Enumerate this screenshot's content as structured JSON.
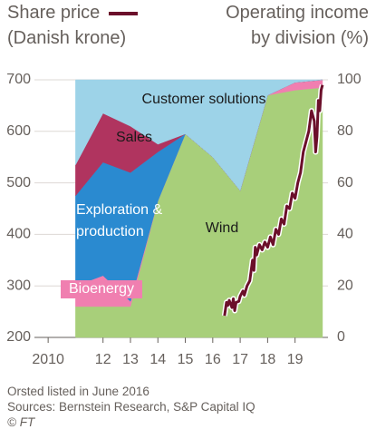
{
  "chart_data": {
    "type": "area",
    "stacked": true,
    "ylabel": "(Danish krone)",
    "y2label": "Operating income by division (%)",
    "note": "Orsted listed in June 2016",
    "source": "Sources: Bernstein Research, S&P Capital IQ",
    "credit": "© FT",
    "xlim": [
      2009.5,
      2020.2
    ],
    "xticks": [
      2010,
      {
        "value": 2012,
        "label": "12"
      },
      {
        "value": 2013,
        "label": "13"
      },
      {
        "value": 2014,
        "label": "14"
      },
      {
        "value": 2015,
        "label": "15"
      },
      {
        "value": 2016,
        "label": "16"
      },
      {
        "value": 2017,
        "label": "17"
      },
      {
        "value": 2018,
        "label": "18"
      },
      {
        "value": 2019,
        "label": "19"
      }
    ],
    "ylim": [
      200,
      700
    ],
    "yticks": [
      200,
      300,
      400,
      500,
      600,
      700
    ],
    "y2lim": [
      0,
      100
    ],
    "y2ticks": [
      0,
      20,
      40,
      60,
      80,
      100
    ],
    "grid": true,
    "x": [
      2011,
      2012,
      2013,
      2014,
      2015,
      2016,
      2017,
      2018,
      2019,
      2020
    ],
    "series": [
      {
        "name": "Wind",
        "color": "#a8cf7a",
        "axis": "y2",
        "values": [
          12,
          12,
          12,
          53,
          79,
          70,
          57,
          94,
          96,
          97
        ]
      },
      {
        "name": "Bioenergy",
        "color": "#f07fb0",
        "axis": "y2",
        "values": [
          8,
          12,
          2,
          0,
          0,
          0,
          0,
          0,
          3,
          3
        ]
      },
      {
        "name": "Exploration & production",
        "color": "#2a8ad0",
        "axis": "y2",
        "values": [
          35,
          44,
          50,
          19,
          0,
          0,
          0,
          0,
          0,
          0
        ]
      },
      {
        "name": "Sales",
        "color": "#b0345f",
        "axis": "y2",
        "values": [
          12,
          19,
          18,
          3,
          0,
          0,
          0,
          0,
          0,
          0
        ]
      },
      {
        "name": "Customer solutions",
        "color": "#9dd3e8",
        "axis": "y2",
        "values": [
          33,
          13,
          18,
          25,
          21,
          30,
          43,
          6,
          1,
          0
        ]
      },
      {
        "name": "Share price",
        "type": "line",
        "color": "#6b0f2a",
        "x": [
          2016.43,
          2016.5,
          2016.55,
          2016.6,
          2016.7,
          2016.75,
          2016.8,
          2016.85,
          2016.95,
          2017.0,
          2017.1,
          2017.15,
          2017.25,
          2017.35,
          2017.45,
          2017.5,
          2017.55,
          2017.6,
          2017.7,
          2017.8,
          2017.9,
          2018.0,
          2018.1,
          2018.2,
          2018.3,
          2018.4,
          2018.5,
          2018.6,
          2018.7,
          2018.8,
          2018.9,
          2019.0,
          2019.1,
          2019.2,
          2019.3,
          2019.4,
          2019.5,
          2019.6,
          2019.7,
          2019.75,
          2019.8,
          2019.85,
          2019.9,
          2019.95,
          2020.0
        ],
        "values": [
          242,
          268,
          262,
          272,
          258,
          275,
          252,
          268,
          270,
          280,
          290,
          282,
          300,
          310,
          350,
          330,
          375,
          360,
          380,
          370,
          385,
          375,
          395,
          380,
          410,
          400,
          430,
          420,
          455,
          450,
          480,
          470,
          500,
          520,
          560,
          580,
          600,
          640,
          620,
          560,
          590,
          660,
          640,
          680,
          690
        ]
      }
    ]
  }
}
